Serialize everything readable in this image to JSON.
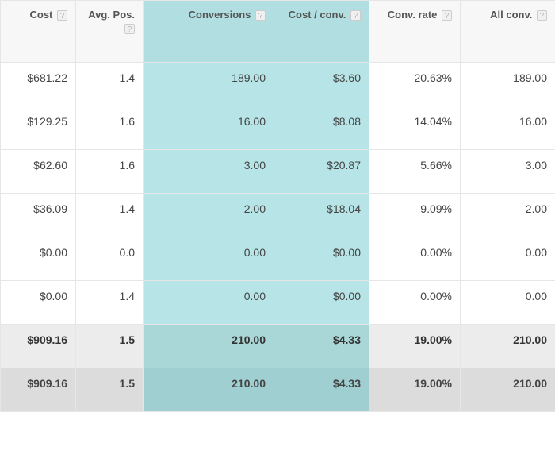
{
  "colors": {
    "highlight_bg": "#b7e4e6",
    "header_bg": "#f7f7f7",
    "total_bg": "#ececec",
    "total2_bg": "#dcdcdc",
    "border": "#e6e6e6",
    "text": "#333333"
  },
  "table": {
    "columns": [
      {
        "label": "Cost",
        "help": true,
        "highlighted": false
      },
      {
        "label": "Avg. Pos.",
        "help": true,
        "highlighted": false
      },
      {
        "label": "Conversions",
        "help": true,
        "highlighted": true
      },
      {
        "label": "Cost / conv.",
        "help": true,
        "highlighted": true
      },
      {
        "label": "Conv. rate",
        "help": true,
        "highlighted": false
      },
      {
        "label": "All conv.",
        "help": true,
        "highlighted": false
      }
    ],
    "rows": [
      {
        "cells": [
          "$681.22",
          "1.4",
          "189.00",
          "$3.60",
          "20.63%",
          "189.00"
        ],
        "kind": "data"
      },
      {
        "cells": [
          "$129.25",
          "1.6",
          "16.00",
          "$8.08",
          "14.04%",
          "16.00"
        ],
        "kind": "data"
      },
      {
        "cells": [
          "$62.60",
          "1.6",
          "3.00",
          "$20.87",
          "5.66%",
          "3.00"
        ],
        "kind": "data"
      },
      {
        "cells": [
          "$36.09",
          "1.4",
          "2.00",
          "$18.04",
          "9.09%",
          "2.00"
        ],
        "kind": "data"
      },
      {
        "cells": [
          "$0.00",
          "0.0",
          "0.00",
          "$0.00",
          "0.00%",
          "0.00"
        ],
        "kind": "data"
      },
      {
        "cells": [
          "$0.00",
          "1.4",
          "0.00",
          "$0.00",
          "0.00%",
          "0.00"
        ],
        "kind": "data"
      },
      {
        "cells": [
          "$909.16",
          "1.5",
          "210.00",
          "$4.33",
          "19.00%",
          "210.00"
        ],
        "kind": "total"
      },
      {
        "cells": [
          "$909.16",
          "1.5",
          "210.00",
          "$4.33",
          "19.00%",
          "210.00"
        ],
        "kind": "total2"
      }
    ]
  },
  "help_glyph": "?"
}
